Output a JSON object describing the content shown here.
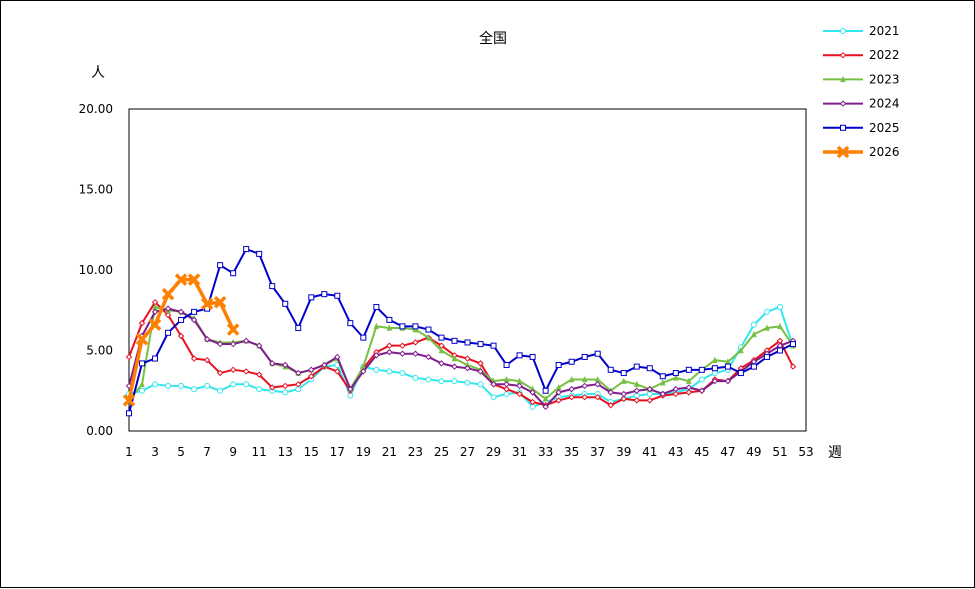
{
  "chart_data": {
    "type": "line",
    "title": "全国",
    "ylabel": "人",
    "xlabel": "週",
    "ylim": [
      0,
      20
    ],
    "xlim": [
      1,
      53
    ],
    "yticks": [
      "0.00",
      "5.00",
      "10.00",
      "15.00",
      "20.00"
    ],
    "xticks": [
      "1",
      "3",
      "5",
      "7",
      "9",
      "11",
      "13",
      "15",
      "17",
      "19",
      "21",
      "23",
      "25",
      "27",
      "29",
      "31",
      "33",
      "35",
      "37",
      "39",
      "41",
      "43",
      "45",
      "47",
      "49",
      "51",
      "53"
    ],
    "grid": "horizontal-dashed",
    "legend_position": "top-right",
    "series": [
      {
        "name": "2021",
        "color": "#33e6ee",
        "marker": "circle",
        "x": [
          1,
          2,
          3,
          4,
          5,
          6,
          7,
          8,
          9,
          10,
          11,
          12,
          13,
          14,
          15,
          16,
          17,
          18,
          19,
          20,
          21,
          22,
          23,
          24,
          25,
          26,
          27,
          28,
          29,
          30,
          31,
          32,
          33,
          34,
          35,
          36,
          37,
          38,
          39,
          40,
          41,
          42,
          43,
          44,
          45,
          46,
          47,
          48,
          49,
          50,
          51,
          52
        ],
        "values": [
          2.3,
          2.5,
          2.9,
          2.8,
          2.8,
          2.6,
          2.8,
          2.5,
          2.9,
          2.9,
          2.6,
          2.5,
          2.4,
          2.6,
          3.2,
          4.0,
          4.1,
          2.2,
          4.0,
          3.8,
          3.7,
          3.6,
          3.3,
          3.2,
          3.1,
          3.1,
          3.0,
          2.9,
          2.1,
          2.3,
          2.4,
          1.5,
          1.8,
          2.1,
          2.2,
          2.3,
          2.3,
          1.8,
          2.0,
          2.2,
          2.3,
          2.3,
          2.4,
          2.6,
          3.2,
          3.6,
          3.8,
          5.2,
          6.6,
          7.4,
          7.7,
          5.3
        ]
      },
      {
        "name": "2022",
        "color": "#e8101e",
        "marker": "diamond",
        "x": [
          1,
          2,
          3,
          4,
          5,
          6,
          7,
          8,
          9,
          10,
          11,
          12,
          13,
          14,
          15,
          16,
          17,
          18,
          19,
          20,
          21,
          22,
          23,
          24,
          25,
          26,
          27,
          28,
          29,
          30,
          31,
          32,
          33,
          34,
          35,
          36,
          37,
          38,
          39,
          40,
          41,
          42,
          43,
          44,
          45,
          46,
          47,
          48,
          49,
          50,
          51,
          52
        ],
        "values": [
          4.6,
          6.7,
          8.0,
          7.2,
          5.9,
          4.5,
          4.4,
          3.6,
          3.8,
          3.7,
          3.5,
          2.7,
          2.8,
          2.9,
          3.4,
          4.0,
          3.7,
          2.5,
          3.9,
          4.9,
          5.3,
          5.3,
          5.5,
          5.8,
          5.3,
          4.7,
          4.5,
          4.2,
          2.9,
          2.6,
          2.3,
          1.8,
          1.6,
          1.9,
          2.1,
          2.1,
          2.1,
          1.6,
          2.0,
          1.9,
          1.9,
          2.2,
          2.3,
          2.4,
          2.5,
          3.2,
          3.1,
          3.9,
          4.4,
          5.0,
          5.6,
          4.0
        ]
      },
      {
        "name": "2023",
        "color": "#77c043",
        "marker": "triangle",
        "x": [
          1,
          2,
          3,
          4,
          5,
          6,
          7,
          8,
          9,
          10,
          11,
          12,
          13,
          14,
          15,
          16,
          17,
          18,
          19,
          20,
          21,
          22,
          23,
          24,
          25,
          26,
          27,
          28,
          29,
          30,
          31,
          32,
          33,
          34,
          35,
          36,
          37,
          38,
          39,
          40,
          41,
          42,
          43,
          44,
          45,
          46,
          47,
          48,
          49,
          50,
          51,
          52
        ],
        "values": [
          1.9,
          2.9,
          7.7,
          7.5,
          7.4,
          7.0,
          5.7,
          5.5,
          5.5,
          5.6,
          5.3,
          4.2,
          4.0,
          3.6,
          3.8,
          4.1,
          4.5,
          2.6,
          4.0,
          6.5,
          6.4,
          6.4,
          6.3,
          5.8,
          5.0,
          4.5,
          4.1,
          3.8,
          3.1,
          3.2,
          3.1,
          2.6,
          2.0,
          2.7,
          3.2,
          3.2,
          3.2,
          2.5,
          3.1,
          2.9,
          2.6,
          3.0,
          3.3,
          3.1,
          3.8,
          4.4,
          4.3,
          5.0,
          6.0,
          6.4,
          6.5,
          5.3
        ]
      },
      {
        "name": "2024",
        "color": "#801c8c",
        "marker": "diamond",
        "x": [
          1,
          2,
          3,
          4,
          5,
          6,
          7,
          8,
          9,
          10,
          11,
          12,
          13,
          14,
          15,
          16,
          17,
          18,
          19,
          20,
          21,
          22,
          23,
          24,
          25,
          26,
          27,
          28,
          29,
          30,
          31,
          32,
          33,
          34,
          35,
          36,
          37,
          38,
          39,
          40,
          41,
          42,
          43,
          44,
          45,
          46,
          47,
          48,
          49,
          50,
          51,
          52
        ],
        "values": [
          2.8,
          5.9,
          7.4,
          7.6,
          7.4,
          6.9,
          5.7,
          5.4,
          5.4,
          5.6,
          5.3,
          4.2,
          4.1,
          3.6,
          3.8,
          4.1,
          4.6,
          2.6,
          3.7,
          4.7,
          4.9,
          4.8,
          4.8,
          4.6,
          4.2,
          4.0,
          3.9,
          3.7,
          2.9,
          2.9,
          2.8,
          2.4,
          1.5,
          2.4,
          2.6,
          2.8,
          2.9,
          2.4,
          2.3,
          2.5,
          2.6,
          2.3,
          2.6,
          2.7,
          2.5,
          3.1,
          3.1,
          3.7,
          4.3,
          4.8,
          5.3,
          5.6
        ]
      },
      {
        "name": "2025",
        "color": "#0000cc",
        "marker": "square",
        "x": [
          1,
          2,
          3,
          4,
          5,
          6,
          7,
          8,
          9,
          10,
          11,
          12,
          13,
          14,
          15,
          16,
          17,
          18,
          19,
          20,
          21,
          22,
          23,
          24,
          25,
          26,
          27,
          28,
          29,
          30,
          31,
          32,
          33,
          34,
          35,
          36,
          37,
          38,
          39,
          40,
          41,
          42,
          43,
          44,
          45,
          46,
          47,
          48,
          49,
          50,
          51,
          52
        ],
        "values": [
          1.1,
          4.2,
          4.5,
          6.1,
          6.9,
          7.4,
          7.6,
          10.3,
          9.8,
          11.3,
          11.0,
          9.0,
          7.9,
          6.4,
          8.3,
          8.5,
          8.4,
          6.7,
          5.8,
          7.7,
          6.9,
          6.5,
          6.5,
          6.3,
          5.8,
          5.6,
          5.5,
          5.4,
          5.3,
          4.1,
          4.7,
          4.6,
          2.5,
          4.1,
          4.3,
          4.6,
          4.8,
          3.8,
          3.6,
          4.0,
          3.9,
          3.4,
          3.6,
          3.8,
          3.8,
          3.9,
          4.0,
          3.6,
          4.0,
          4.6,
          5.0,
          5.4
        ]
      },
      {
        "name": "2026",
        "color": "#ff8000",
        "marker": "cross",
        "x": [
          1,
          2,
          3,
          4,
          5,
          6,
          7,
          8,
          9
        ],
        "values": [
          1.9,
          5.7,
          6.6,
          8.5,
          9.4,
          9.4,
          7.9,
          8.0,
          6.3
        ]
      }
    ]
  }
}
